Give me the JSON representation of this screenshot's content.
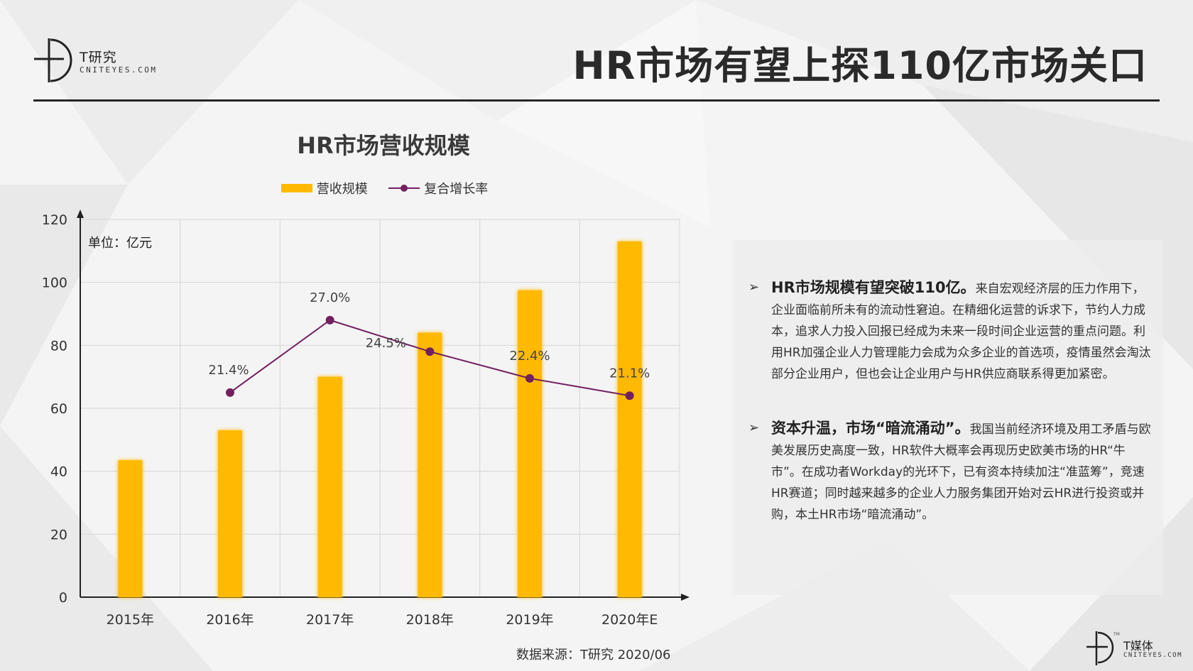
{
  "brand": {
    "name": "T研究",
    "sub": "CNITEYES.COM"
  },
  "page_title": "HR市场有望上探110亿市场关口",
  "chart_data": {
    "type": "bar",
    "title": "HR市场营收规模",
    "unit": "单位：亿元",
    "categories": [
      "2015年",
      "2016年",
      "2017年",
      "2018年",
      "2019年",
      "2020年E"
    ],
    "series": [
      {
        "name": "营收规模",
        "type": "bar",
        "color": "#ffb900",
        "values": [
          43.5,
          53,
          70,
          84,
          97.5,
          113
        ]
      },
      {
        "name": "复合增长率",
        "type": "line",
        "color": "#722060",
        "values": [
          null,
          21.4,
          27.0,
          24.5,
          22.4,
          21.1
        ],
        "labels": [
          "",
          "21.4%",
          "27.0%",
          "24.5%",
          "22.4%",
          "21.1%"
        ],
        "plot_values": [
          null,
          65,
          88,
          78,
          69.5,
          64
        ]
      }
    ],
    "yticks": [
      0,
      20,
      40,
      60,
      80,
      100,
      120
    ],
    "ylim": [
      0,
      120
    ],
    "grid": true,
    "legend_position": "top-center",
    "source": "数据来源：T研究 2020/06"
  },
  "bullets": [
    {
      "lead": "HR市场规模有望突破110亿。",
      "text": "来自宏观经济层的压力作用下，企业面临前所未有的流动性窘迫。在精细化运营的诉求下，节约人力成本，追求人力投入回报已经成为未来一段时间企业运营的重点问题。利用HR加强企业人力管理能力会成为众多企业的首选项，疫情虽然会淘汰部分企业用户，但也会让企业用户与HR供应商联系得更加紧密。"
    },
    {
      "lead": "资本升温，市场“暗流涌动”。",
      "text": "我国当前经济环境及用工矛盾与欧美发展历史高度一致，HR软件大概率会再现历史欧美市场的HR“牛市”。在成功者Workday的光环下，已有资本持续加注“准蓝筹”，竞速HR赛道；同时越来越多的企业人力服务集团开始对云HR进行投资或并购，本土HR市场“暗流涌动”。"
    }
  ],
  "footer_brand": {
    "name": "T媒体",
    "sub": "CNITEYES.COM",
    "tm": "TM"
  }
}
